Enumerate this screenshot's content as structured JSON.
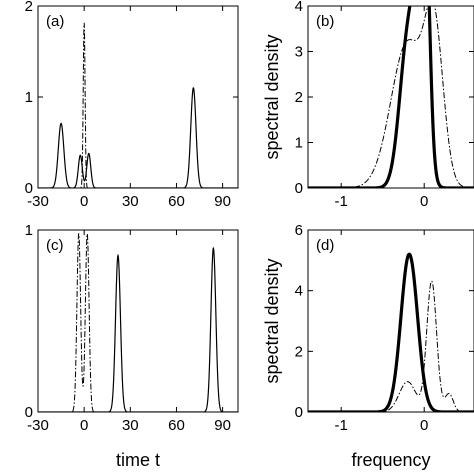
{
  "chart_data": [
    {
      "panel": "a",
      "type": "line",
      "panel_label": "(a)",
      "xlabel": "",
      "ylabel": "",
      "xlim": [
        -30,
        100
      ],
      "ylim": [
        0,
        2
      ],
      "xticks": [
        -30,
        0,
        30,
        60,
        90
      ],
      "xtick_labels": [
        "-30",
        "0",
        "30",
        "60",
        "90"
      ],
      "yticks": [
        0,
        1,
        2
      ],
      "ytick_labels": [
        "0",
        "1",
        "2"
      ],
      "series": [
        {
          "style": "solid",
          "peaks": [
            {
              "center": -15,
              "height": 0.71,
              "width": 1.8
            },
            {
              "center": -2.5,
              "height": 0.36,
              "width": 1.3
            },
            {
              "center": 3,
              "height": 0.38,
              "width": 1.3
            },
            {
              "center": 71,
              "height": 1.1,
              "width": 1.7
            }
          ]
        },
        {
          "style": "dashdot",
          "peaks": [
            {
              "center": 0,
              "height": 1.82,
              "width": 0.6
            }
          ]
        }
      ]
    },
    {
      "panel": "b",
      "type": "line",
      "panel_label": "(b)",
      "xlabel": "",
      "ylabel": "spectral density",
      "xlim": [
        -1.4,
        0.6
      ],
      "ylim": [
        0,
        4
      ],
      "xticks": [
        -1,
        0
      ],
      "xtick_labels": [
        "-1",
        "0"
      ],
      "yticks": [
        0,
        1,
        2,
        3,
        4
      ],
      "ytick_labels": [
        "0",
        "1",
        "2",
        "3",
        "4"
      ],
      "series": [
        {
          "style": "thick-solid",
          "peaks": [
            {
              "center": -0.2,
              "height": 3.1,
              "width": 0.1
            },
            {
              "center": -0.05,
              "height": 3.3,
              "width": 0.08
            },
            {
              "center": 0.02,
              "height": 3.7,
              "width": 0.05
            }
          ]
        },
        {
          "style": "dashdot",
          "peaks": [
            {
              "center": -0.2,
              "height": 3.2,
              "width": 0.2
            },
            {
              "center": 0.12,
              "height": 3.15,
              "width": 0.11
            }
          ]
        }
      ]
    },
    {
      "panel": "c",
      "type": "line",
      "panel_label": "(c)",
      "xlabel": "time t",
      "ylabel": "",
      "xlim": [
        -30,
        100
      ],
      "ylim": [
        0,
        1
      ],
      "xticks": [
        -30,
        0,
        30,
        60,
        90
      ],
      "xtick_labels": [
        "-30",
        "0",
        "30",
        "60",
        "90"
      ],
      "yticks": [
        0,
        1
      ],
      "ytick_labels": [
        "0",
        "1"
      ],
      "series": [
        {
          "style": "solid",
          "peaks": [
            {
              "center": 22,
              "height": 0.86,
              "width": 1.6
            },
            {
              "center": 84,
              "height": 0.9,
              "width": 1.6
            }
          ]
        },
        {
          "style": "dashdot",
          "peaks": [
            {
              "center": -3.5,
              "height": 0.98,
              "width": 1.2
            },
            {
              "center": 2,
              "height": 0.98,
              "width": 1.2
            }
          ]
        }
      ]
    },
    {
      "panel": "d",
      "type": "line",
      "panel_label": "(d)",
      "xlabel": "frequency",
      "ylabel": "spectral density",
      "xlim": [
        -1.4,
        0.6
      ],
      "ylim": [
        0,
        6
      ],
      "xticks": [
        -1,
        0
      ],
      "xtick_labels": [
        "-1",
        "0"
      ],
      "yticks": [
        0,
        2,
        4,
        6
      ],
      "ytick_labels": [
        "0",
        "2",
        "4",
        "6"
      ],
      "series": [
        {
          "style": "thick-solid",
          "peaks": [
            {
              "center": -0.18,
              "height": 5.2,
              "width": 0.1
            }
          ]
        },
        {
          "style": "dashdot",
          "peaks": [
            {
              "center": -0.2,
              "height": 1.0,
              "width": 0.1
            },
            {
              "center": 0.09,
              "height": 4.3,
              "width": 0.06
            },
            {
              "center": 0.3,
              "height": 0.6,
              "width": 0.05
            }
          ]
        }
      ]
    }
  ]
}
